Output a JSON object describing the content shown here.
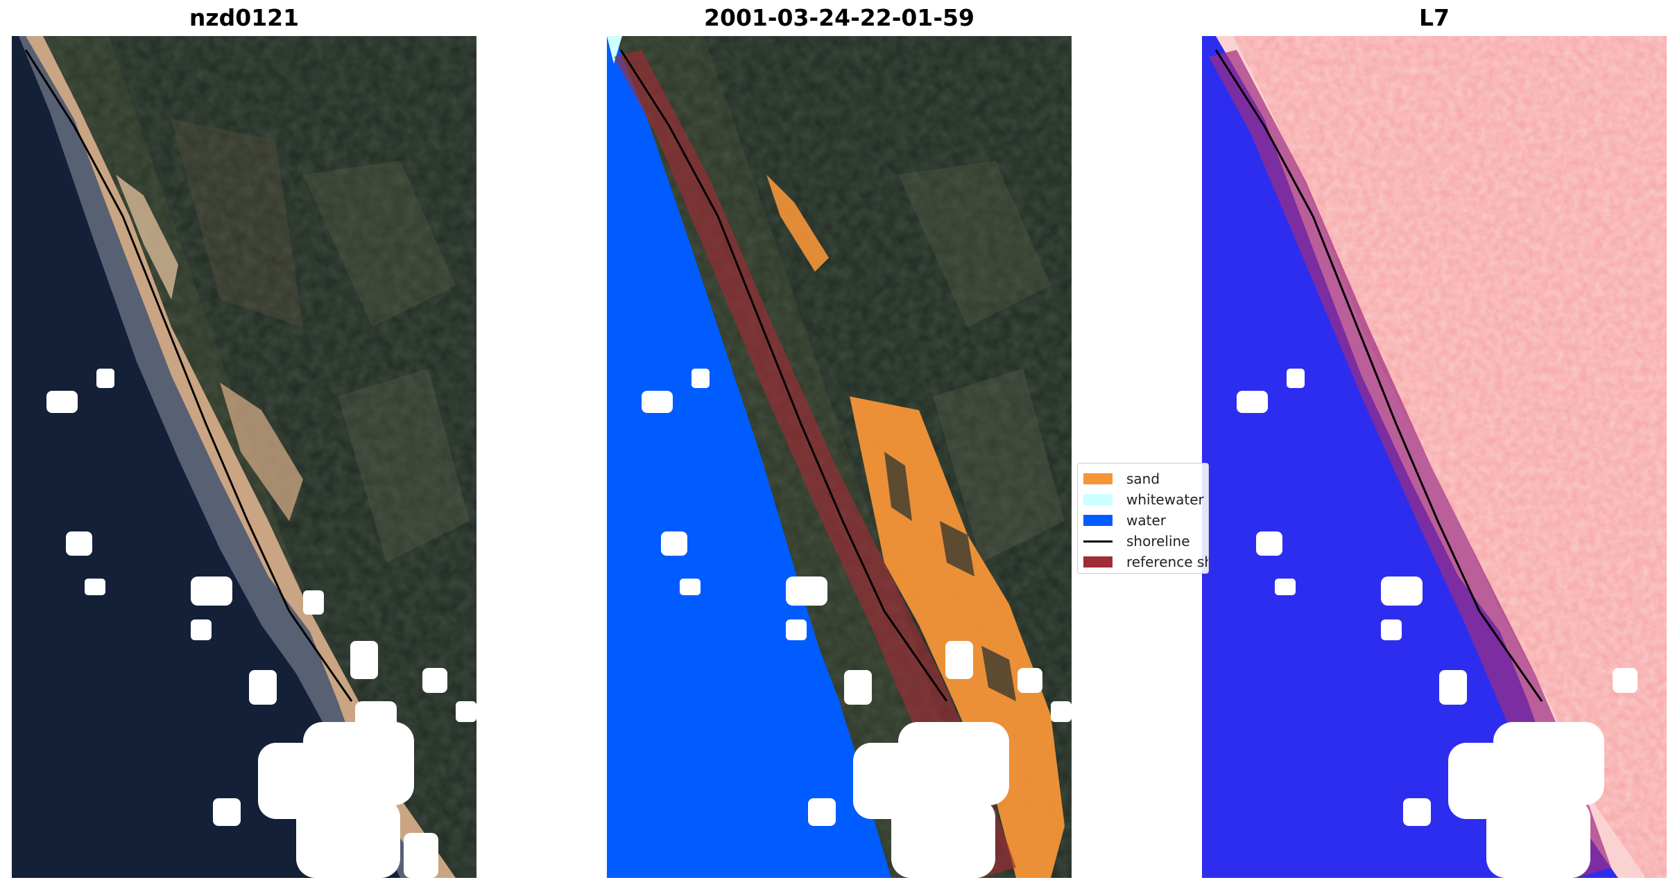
{
  "panels": [
    {
      "title": "nzd0121"
    },
    {
      "title": "2001-03-24-22-01-59"
    },
    {
      "title": "L7"
    }
  ],
  "legend": {
    "items": [
      {
        "label": "sand",
        "type": "patch",
        "color": "#f59538"
      },
      {
        "label": "whitewater",
        "type": "patch",
        "color": "#ccffff"
      },
      {
        "label": "water",
        "type": "patch",
        "color": "#005cff"
      },
      {
        "label": "shoreline",
        "type": "line",
        "color": "#000000"
      },
      {
        "label": "reference shoreline buffer",
        "type": "patch",
        "color": "#9e2d36"
      }
    ]
  },
  "colors": {
    "ocean_rgb": "#15213a",
    "land_rgb": "#2b3524",
    "beach_sand": "#c8a27f",
    "water_class": "#005cff",
    "sand_class": "#f59538",
    "buffer": "#9e2d36",
    "mndwi_water": "#2b2bee",
    "mndwi_land": "#f7a3a3"
  }
}
